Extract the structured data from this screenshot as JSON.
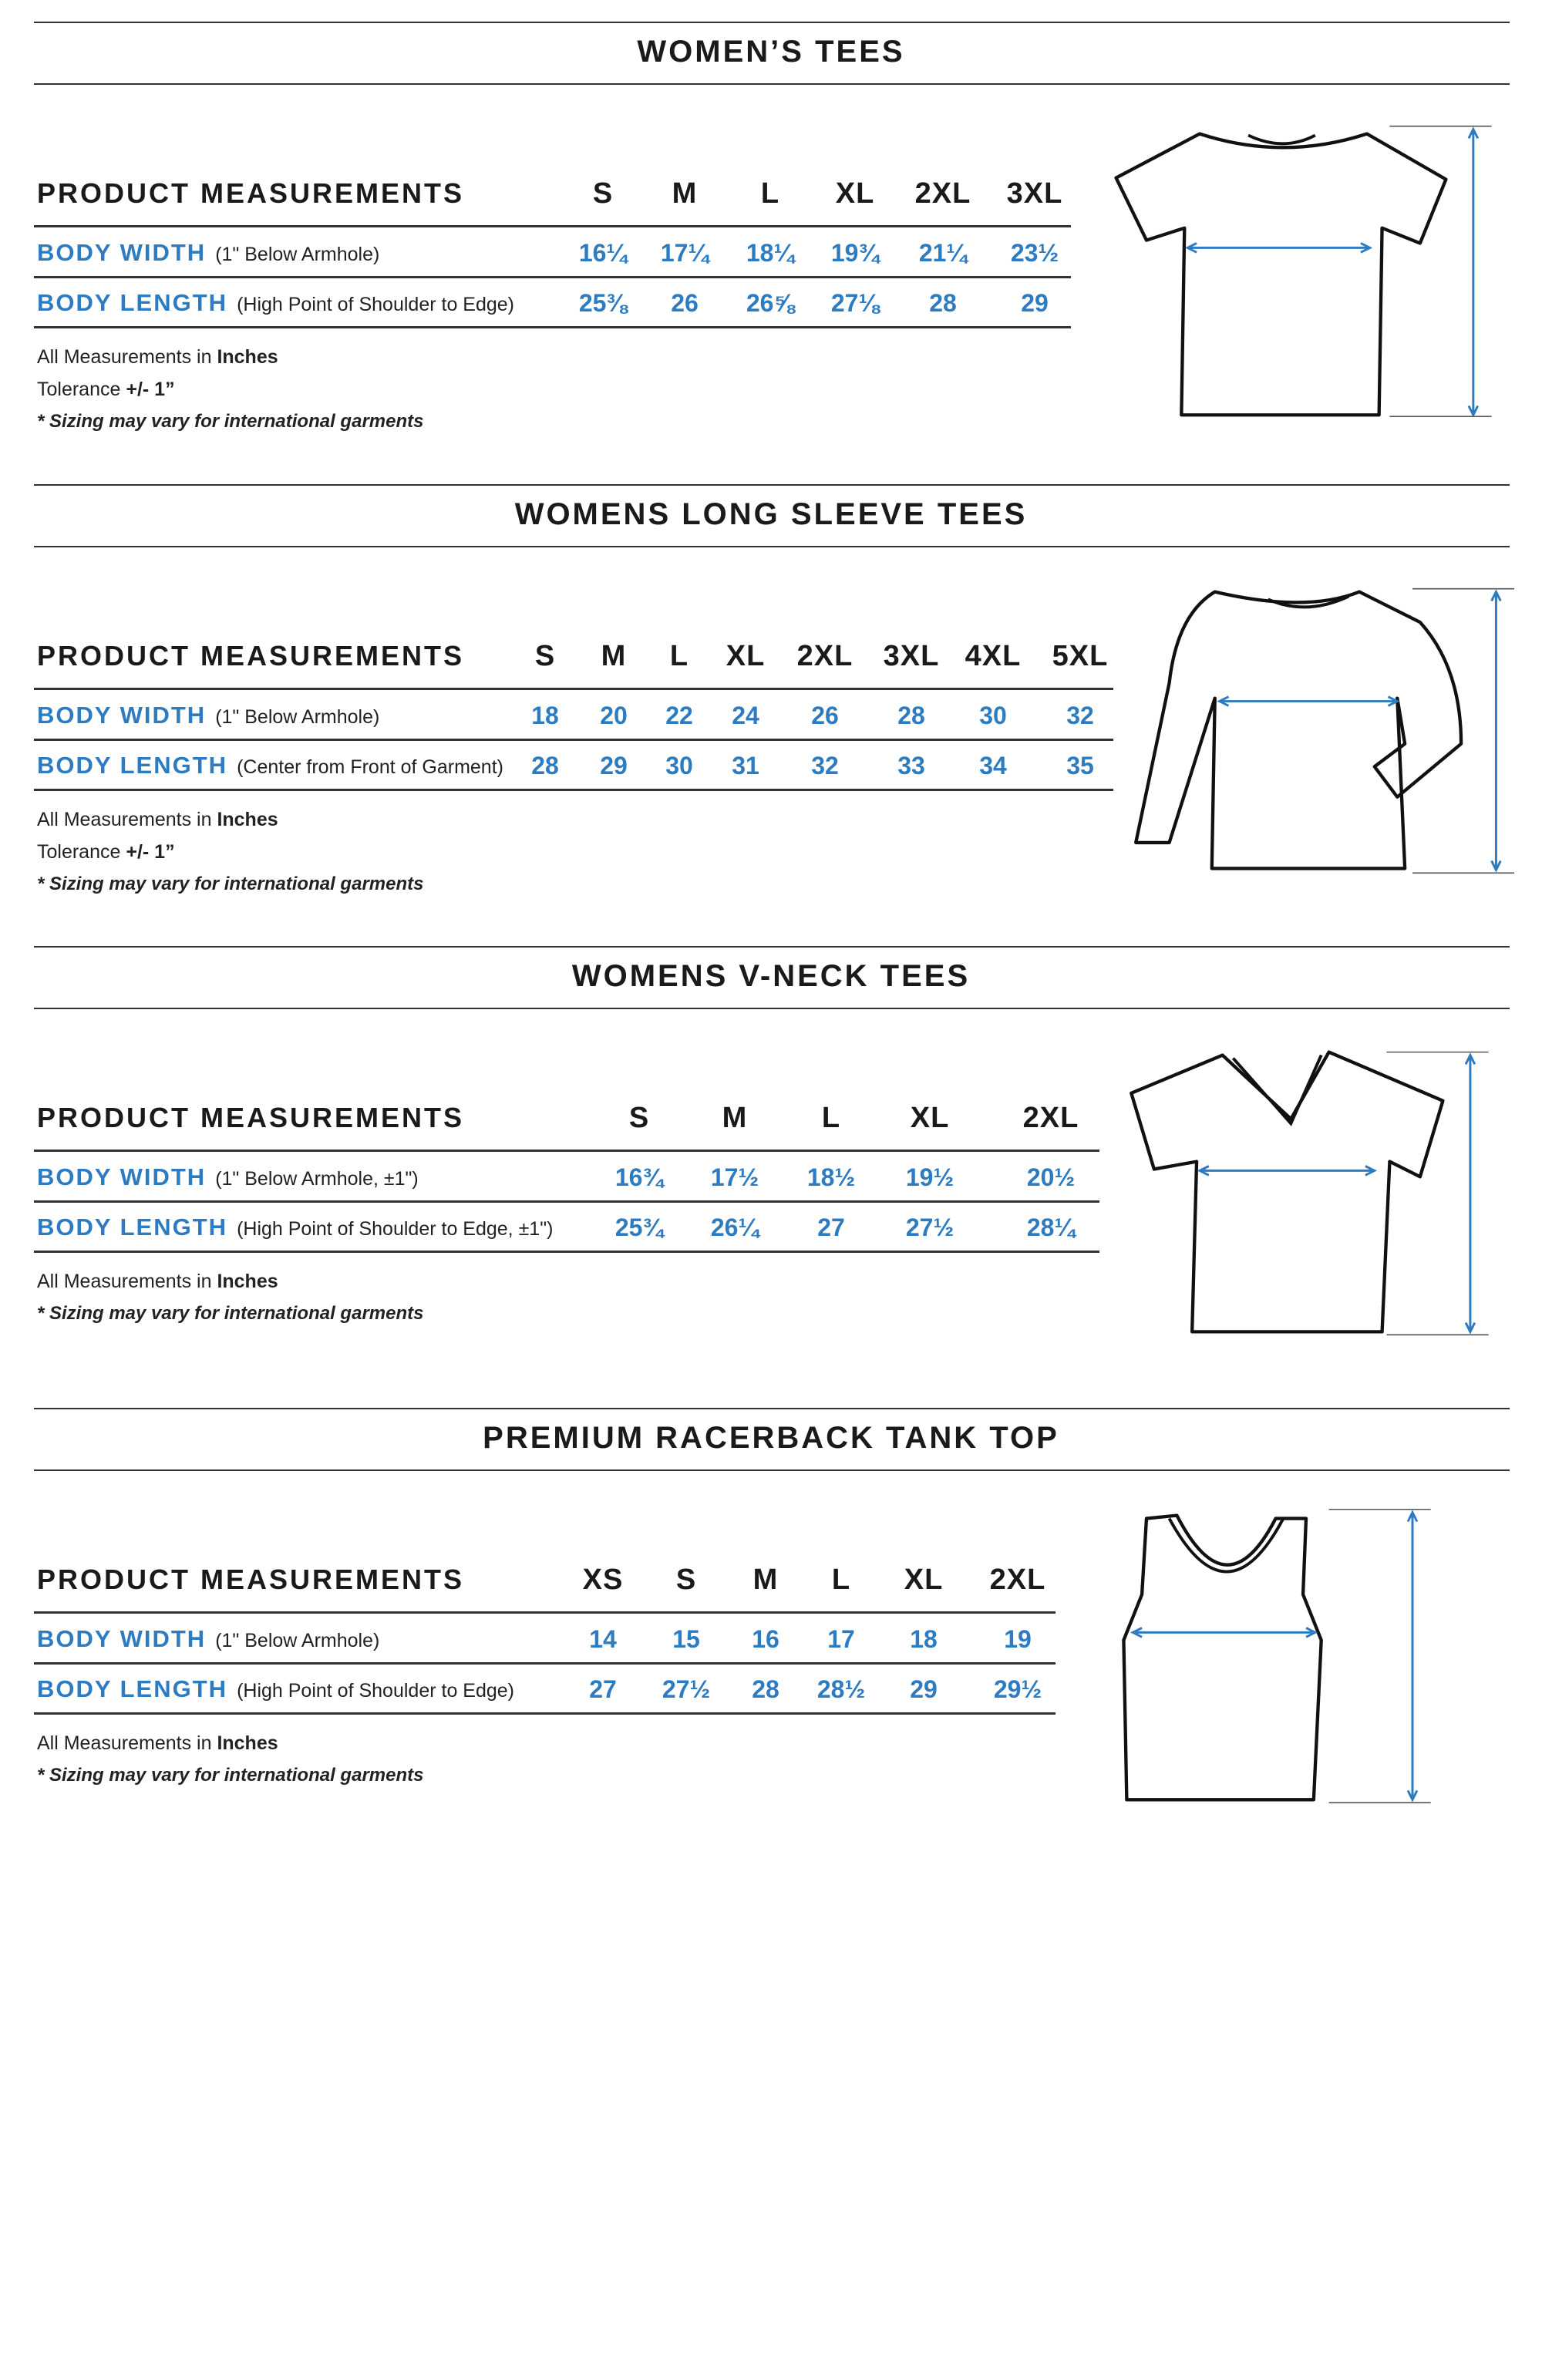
{
  "colors": {
    "accent_blue": "#2d7cc1",
    "text": "#1a1a1a",
    "rule": "#333333"
  },
  "sections": [
    {
      "title": "WOMEN’S TEES",
      "header_label": "PRODUCT MEASUREMENTS",
      "sizes": [
        "S",
        "M",
        "L",
        "XL",
        "2XL",
        "3XL"
      ],
      "rows": [
        {
          "label": "BODY WIDTH",
          "note": "(1\" Below Armhole)",
          "values": [
            "16¼",
            "17¼",
            "18¼",
            "19¾",
            "21¼",
            "23½"
          ]
        },
        {
          "label": "BODY LENGTH",
          "note": "(High Point of Shoulder to Edge)",
          "values": [
            "25⅜",
            "26",
            "26⅝",
            "27⅛",
            "28",
            "29"
          ]
        }
      ],
      "notes": {
        "measure_prefix": "All Measurements in",
        "measure_unit": "Inches",
        "tolerance_prefix": "Tolerance",
        "tolerance_value": "+/- 1”",
        "disclaimer": "* Sizing may vary for international garments"
      },
      "garment_icon": "t-shirt-icon"
    },
    {
      "title": "WOMENS LONG SLEEVE TEES",
      "header_label": "PRODUCT MEASUREMENTS",
      "sizes": [
        "S",
        "M",
        "L",
        "XL",
        "2XL",
        "3XL",
        "4XL",
        "5XL"
      ],
      "rows": [
        {
          "label": "BODY WIDTH",
          "note": "(1\" Below Armhole)",
          "values": [
            "18",
            "20",
            "22",
            "24",
            "26",
            "28",
            "30",
            "32"
          ]
        },
        {
          "label": "BODY LENGTH",
          "note": "(Center from Front of Garment)",
          "values": [
            "28",
            "29",
            "30",
            "31",
            "32",
            "33",
            "34",
            "35"
          ]
        }
      ],
      "notes": {
        "measure_prefix": "All Measurements in",
        "measure_unit": "Inches",
        "tolerance_prefix": "Tolerance",
        "tolerance_value": "+/- 1”",
        "disclaimer": "* Sizing may vary for international garments"
      },
      "garment_icon": "long-sleeve-shirt-icon"
    },
    {
      "title": "WOMENS V-NECK TEES",
      "header_label": "PRODUCT MEASUREMENTS",
      "sizes": [
        "S",
        "M",
        "L",
        "XL",
        "2XL"
      ],
      "rows": [
        {
          "label": "BODY WIDTH",
          "note": "(1\" Below Armhole, ±1\")",
          "values": [
            "16¾",
            "17½",
            "18½",
            "19½",
            "20½"
          ]
        },
        {
          "label": "BODY LENGTH",
          "note": "(High Point of Shoulder to Edge, ±1\")",
          "values": [
            "25¾",
            "26¼",
            "27",
            "27½",
            "28¼"
          ]
        }
      ],
      "notes": {
        "measure_prefix": "All Measurements in",
        "measure_unit": "Inches",
        "disclaimer": "* Sizing may vary for international garments"
      },
      "garment_icon": "v-neck-shirt-icon"
    },
    {
      "title": "PREMIUM RACERBACK TANK TOP",
      "header_label": "PRODUCT MEASUREMENTS",
      "sizes": [
        "XS",
        "S",
        "M",
        "L",
        "XL",
        "2XL"
      ],
      "rows": [
        {
          "label": "BODY WIDTH",
          "note": "(1\" Below Armhole)",
          "values": [
            "14",
            "15",
            "16",
            "17",
            "18",
            "19"
          ]
        },
        {
          "label": "BODY LENGTH",
          "note": "(High Point of Shoulder to Edge)",
          "values": [
            "27",
            "27½",
            "28",
            "28½",
            "29",
            "29½"
          ]
        }
      ],
      "notes": {
        "measure_prefix": "All Measurements in",
        "measure_unit": "Inches",
        "disclaimer": "* Sizing may vary for international garments"
      },
      "garment_icon": "tank-top-icon"
    }
  ]
}
